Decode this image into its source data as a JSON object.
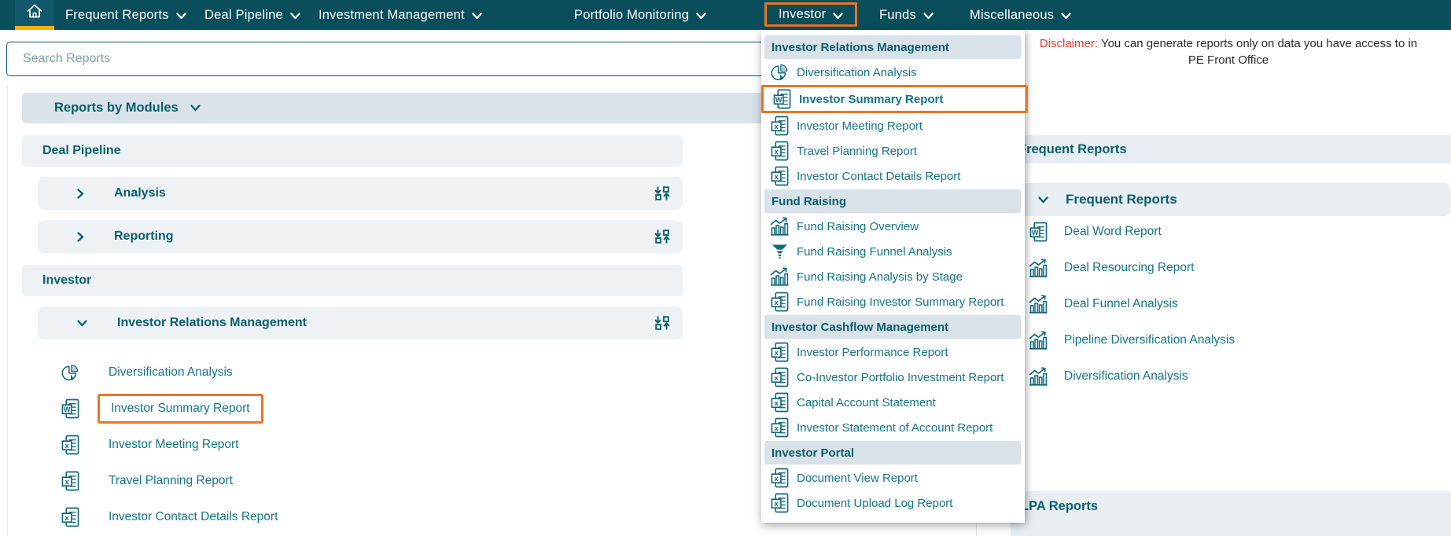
{
  "palette": {
    "nav_teal": "#0b4e5b",
    "link_teal": "#157585",
    "header_teal": "#0c5e6d",
    "accent_orange": "#e87524",
    "highlight_yellow": "#f1b211",
    "disclaimer_red": "#ef3a2d",
    "section_header_bg": "#d8e2e8",
    "row_bg": "#eef2f5"
  },
  "nav": {
    "items": [
      {
        "label": "Frequent Reports"
      },
      {
        "label": "Deal Pipeline"
      },
      {
        "label": "Investment Management"
      },
      {
        "label": "Portfolio Monitoring"
      },
      {
        "label": "Investor",
        "highlighted": true
      },
      {
        "label": "Funds"
      },
      {
        "label": "Miscellaneous"
      }
    ]
  },
  "search": {
    "placeholder": "Search Reports"
  },
  "disclaimer": {
    "label": "Disclaimer:",
    "line1": "You can generate reports only on data you have access to in",
    "line2": "PE Front Office"
  },
  "modules_panel": {
    "title": "Reports by Modules",
    "rows": [
      {
        "type": "module",
        "label": "Deal Pipeline"
      },
      {
        "type": "group",
        "label": "Analysis",
        "state": "collapsed"
      },
      {
        "type": "group",
        "label": "Reporting",
        "state": "collapsed"
      },
      {
        "type": "module",
        "label": "Investor"
      },
      {
        "type": "group",
        "label": "Investor Relations Management",
        "state": "expanded"
      },
      {
        "type": "report",
        "label": "Diversification Analysis",
        "icon": "pie-chart"
      },
      {
        "type": "report",
        "label": "Investor Summary Report",
        "icon": "word-doc",
        "highlighted": true
      },
      {
        "type": "report",
        "label": "Investor Meeting Report",
        "icon": "excel-doc"
      },
      {
        "type": "report",
        "label": "Travel Planning Report",
        "icon": "excel-doc"
      },
      {
        "type": "report",
        "label": "Investor Contact Details Report",
        "icon": "excel-doc"
      }
    ]
  },
  "investor_menu": {
    "sections": [
      {
        "header": "Investor Relations Management",
        "items": [
          {
            "label": "Diversification Analysis",
            "icon": "pie-chart"
          },
          {
            "label": "Investor Summary Report",
            "icon": "word-doc",
            "highlighted": true
          },
          {
            "label": "Investor Meeting Report",
            "icon": "excel-doc"
          },
          {
            "label": "Travel Planning Report",
            "icon": "excel-doc"
          },
          {
            "label": "Investor Contact Details Report",
            "icon": "excel-doc"
          }
        ]
      },
      {
        "header": "Fund Raising",
        "items": [
          {
            "label": "Fund Raising Overview",
            "icon": "bar-chart"
          },
          {
            "label": "Fund Raising Funnel Analysis",
            "icon": "funnel"
          },
          {
            "label": "Fund Raising Analysis by Stage",
            "icon": "bar-chart"
          },
          {
            "label": "Fund Raising Investor Summary Report",
            "icon": "excel-doc"
          }
        ]
      },
      {
        "header": "Investor Cashflow Management",
        "items": [
          {
            "label": "Investor Performance Report",
            "icon": "excel-doc"
          },
          {
            "label": "Co-Investor Portfolio Investment Report",
            "icon": "excel-doc"
          },
          {
            "label": "Capital Account Statement",
            "icon": "excel-doc"
          },
          {
            "label": "Investor Statement of Account Report",
            "icon": "excel-doc"
          }
        ]
      },
      {
        "header": "Investor Portal",
        "items": [
          {
            "label": "Document View Report",
            "icon": "excel-doc"
          },
          {
            "label": "Document Upload Log Report",
            "icon": "excel-doc"
          }
        ]
      }
    ]
  },
  "frequent_reports_panel": {
    "section_title": "Frequent Reports",
    "group_label": "Frequent Reports",
    "reports": [
      {
        "label": "Deal Word Report",
        "icon": "word-doc"
      },
      {
        "label": "Deal Resourcing Report",
        "icon": "bar-chart"
      },
      {
        "label": "Deal Funnel Analysis",
        "icon": "bar-chart"
      },
      {
        "label": "Pipeline Diversification Analysis",
        "icon": "bar-chart"
      },
      {
        "label": "Diversification Analysis",
        "icon": "bar-chart"
      }
    ],
    "lpa_title": "LPA Reports"
  }
}
